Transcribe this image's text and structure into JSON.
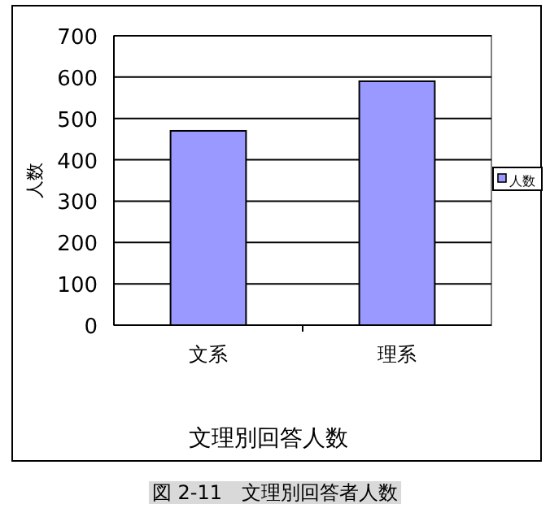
{
  "chart_data": {
    "type": "bar",
    "title": "文理別回答人数",
    "ylabel": "人数",
    "categories": [
      "文系",
      "理系"
    ],
    "series": [
      {
        "name": "人数",
        "color": "#9999ff",
        "values": [
          470,
          590
        ]
      }
    ],
    "ylim": [
      0,
      700
    ],
    "yticks": [
      0,
      100,
      200,
      300,
      400,
      500,
      600,
      700
    ],
    "grid": "y",
    "legend": "right",
    "annotations": [
      "図 2-11　文理別回答者人数"
    ]
  }
}
